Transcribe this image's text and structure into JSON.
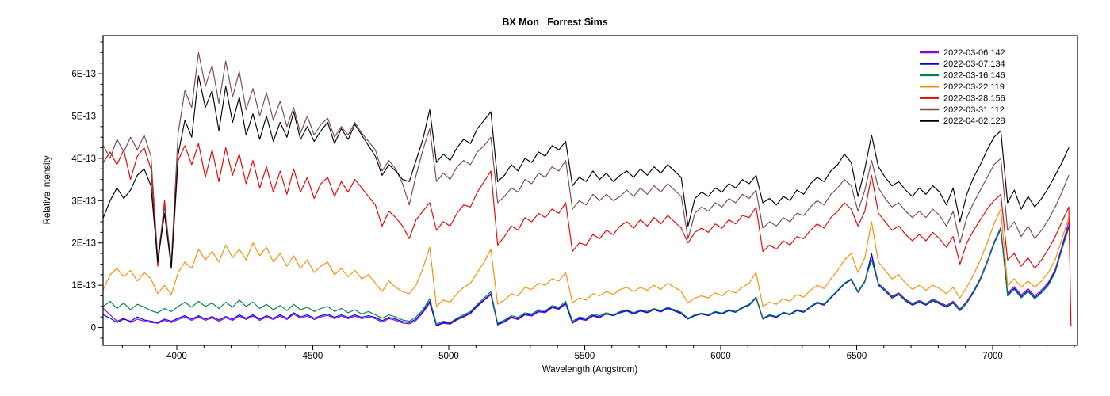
{
  "title": "BX Mon   Forrest Sims",
  "chart_data": {
    "type": "line",
    "title": "BX Mon   Forrest Sims",
    "xlabel": "Wavelength (Angstrom)",
    "ylabel": "Relative intensity",
    "grid": false,
    "legend_position": "top-right",
    "x_range": [
      3729,
      7312
    ],
    "y_range": [
      -4.2e-14,
      6.9e-13
    ],
    "y_unit": "1E-13",
    "x_ticks_major": [
      4000,
      4500,
      5000,
      5500,
      6000,
      6500,
      7000
    ],
    "x_tick_labels": [
      "4000",
      "4500",
      "5000",
      "5500",
      "6000",
      "6500",
      "7000"
    ],
    "x_minor_step": 100,
    "y_ticks_major": [
      0,
      1,
      2,
      3,
      4,
      5,
      6
    ],
    "y_tick_labels": [
      "0",
      "1E-13",
      "2E-13",
      "3E-13",
      "4E-13",
      "5E-13",
      "6E-13"
    ],
    "y_minor_step": 0.25,
    "x_start": 3730,
    "x_step": 25,
    "values_unit_note": "series values are relative intensity in units of 1E-13, sampled every 25 Angstrom from 3730",
    "series": [
      {
        "name": "2022-03-06.142",
        "color": "#8A00E6",
        "values": [
          0.45,
          0.3,
          0.15,
          0.22,
          0.12,
          0.2,
          0.15,
          0.12,
          0.1,
          0.17,
          0.12,
          0.19,
          0.25,
          0.17,
          0.25,
          0.17,
          0.23,
          0.15,
          0.23,
          0.17,
          0.27,
          0.19,
          0.27,
          0.17,
          0.25,
          0.19,
          0.27,
          0.19,
          0.32,
          0.22,
          0.27,
          0.19,
          0.25,
          0.29,
          0.21,
          0.27,
          0.21,
          0.27,
          0.21,
          0.25,
          0.21,
          0.13,
          0.21,
          0.17,
          0.11,
          0.09,
          0.17,
          0.35,
          0.58,
          0.04,
          0.1,
          0.08,
          0.18,
          0.25,
          0.33,
          0.5,
          0.64,
          0.78,
          0.06,
          0.13,
          0.23,
          0.19,
          0.3,
          0.27,
          0.37,
          0.35,
          0.47,
          0.43,
          0.56,
          0.1,
          0.2,
          0.17,
          0.27,
          0.23,
          0.34,
          0.3,
          0.37,
          0.41,
          0.34,
          0.41,
          0.37,
          0.44,
          0.39,
          0.47,
          0.41,
          0.35,
          0.22,
          0.3,
          0.34,
          0.3,
          0.38,
          0.34,
          0.42,
          0.38,
          0.48,
          0.55,
          0.72,
          0.22,
          0.3,
          0.26,
          0.36,
          0.32,
          0.42,
          0.38,
          0.5,
          0.6,
          0.55,
          0.72,
          0.88,
          1.05,
          1.15,
          0.85,
          1.1,
          1.7,
          1.04,
          0.9,
          0.74,
          0.82,
          0.67,
          0.57,
          0.64,
          0.57,
          0.67,
          0.6,
          0.52,
          0.62,
          0.44,
          0.62,
          0.87,
          1.17,
          1.57,
          2.02,
          2.37,
          0.82,
          0.97,
          0.77,
          0.92,
          0.75,
          0.89,
          1.07,
          1.37,
          1.92,
          2.5
        ]
      },
      {
        "name": "2022-03-07.134",
        "color": "#0000EE",
        "values": [
          0.3,
          0.22,
          0.12,
          0.2,
          0.15,
          0.25,
          0.18,
          0.15,
          0.12,
          0.2,
          0.15,
          0.22,
          0.28,
          0.2,
          0.28,
          0.2,
          0.26,
          0.18,
          0.26,
          0.2,
          0.3,
          0.22,
          0.3,
          0.2,
          0.28,
          0.22,
          0.3,
          0.22,
          0.35,
          0.25,
          0.3,
          0.22,
          0.28,
          0.32,
          0.24,
          0.3,
          0.24,
          0.3,
          0.24,
          0.28,
          0.24,
          0.16,
          0.24,
          0.2,
          0.14,
          0.12,
          0.2,
          0.38,
          0.62,
          0.05,
          0.12,
          0.1,
          0.2,
          0.27,
          0.35,
          0.52,
          0.66,
          0.8,
          0.08,
          0.15,
          0.25,
          0.21,
          0.32,
          0.29,
          0.39,
          0.37,
          0.49,
          0.45,
          0.58,
          0.12,
          0.22,
          0.19,
          0.29,
          0.25,
          0.32,
          0.28,
          0.35,
          0.39,
          0.32,
          0.39,
          0.35,
          0.42,
          0.37,
          0.45,
          0.39,
          0.33,
          0.2,
          0.28,
          0.32,
          0.28,
          0.36,
          0.32,
          0.4,
          0.36,
          0.46,
          0.53,
          0.7,
          0.2,
          0.28,
          0.24,
          0.34,
          0.3,
          0.4,
          0.36,
          0.48,
          0.58,
          0.53,
          0.7,
          0.86,
          1.03,
          1.13,
          0.83,
          1.08,
          1.75,
          1.0,
          0.86,
          0.7,
          0.78,
          0.63,
          0.53,
          0.6,
          0.53,
          0.63,
          0.56,
          0.48,
          0.58,
          0.4,
          0.58,
          0.83,
          1.13,
          1.53,
          1.98,
          2.33,
          0.78,
          0.93,
          0.73,
          0.88,
          0.71,
          0.85,
          1.03,
          1.33,
          1.88,
          2.4
        ]
      },
      {
        "name": "2022-03-16.146",
        "color": "#00804C",
        "values": [
          0.5,
          0.62,
          0.45,
          0.58,
          0.42,
          0.55,
          0.48,
          0.4,
          0.35,
          0.45,
          0.38,
          0.5,
          0.6,
          0.48,
          0.62,
          0.5,
          0.58,
          0.45,
          0.6,
          0.48,
          0.65,
          0.5,
          0.6,
          0.45,
          0.55,
          0.42,
          0.52,
          0.4,
          0.55,
          0.42,
          0.48,
          0.38,
          0.45,
          0.5,
          0.38,
          0.45,
          0.35,
          0.42,
          0.32,
          0.38,
          0.3,
          0.22,
          0.3,
          0.25,
          0.18,
          0.15,
          0.25,
          0.42,
          0.68,
          0.08,
          0.15,
          0.12,
          0.22,
          0.3,
          0.38,
          0.55,
          0.7,
          0.85,
          0.1,
          0.18,
          0.28,
          0.24,
          0.35,
          0.32,
          0.42,
          0.4,
          0.52,
          0.48,
          0.62,
          0.15,
          0.25,
          0.22,
          0.32,
          0.28,
          0.35,
          0.3,
          0.38,
          0.42,
          0.35,
          0.42,
          0.38,
          0.45,
          0.4,
          0.48,
          0.42,
          0.36,
          0.22,
          0.3,
          0.34,
          0.3,
          0.38,
          0.34,
          0.42,
          0.38,
          0.48,
          0.55,
          0.72,
          0.22,
          0.3,
          0.26,
          0.36,
          0.32,
          0.42,
          0.38,
          0.5,
          0.6,
          0.55,
          0.72,
          0.88,
          1.05,
          1.15,
          0.85,
          1.1,
          1.6,
          1.02,
          0.88,
          0.72,
          0.8,
          0.65,
          0.55,
          0.62,
          0.55,
          0.65,
          0.58,
          0.5,
          0.6,
          0.42,
          0.6,
          0.85,
          1.15,
          1.55,
          2.0,
          2.35,
          0.75,
          0.9,
          0.7,
          0.85,
          0.68,
          0.82,
          1.0,
          1.3,
          1.85,
          2.35
        ]
      },
      {
        "name": "2022-03-22.119",
        "color": "#FF8C00",
        "values": [
          0.9,
          1.25,
          1.4,
          1.2,
          1.35,
          1.1,
          1.3,
          1.15,
          0.8,
          1.0,
          0.78,
          1.3,
          1.55,
          1.4,
          1.85,
          1.6,
          1.8,
          1.55,
          1.95,
          1.65,
          1.85,
          1.6,
          2.0,
          1.7,
          1.9,
          1.55,
          1.75,
          1.45,
          1.7,
          1.4,
          1.6,
          1.3,
          1.45,
          1.55,
          1.25,
          1.4,
          1.2,
          1.35,
          1.15,
          1.25,
          1.05,
          0.85,
          1.1,
          0.95,
          0.85,
          0.8,
          1.0,
          1.4,
          1.9,
          0.5,
          0.65,
          0.6,
          0.8,
          0.95,
          1.05,
          1.3,
          1.55,
          1.85,
          0.55,
          0.65,
          0.8,
          0.75,
          0.95,
          0.9,
          1.05,
          1.0,
          1.15,
          1.1,
          1.3,
          0.58,
          0.7,
          0.65,
          0.8,
          0.75,
          0.85,
          0.78,
          0.9,
          0.95,
          0.85,
          0.95,
          0.88,
          1.0,
          0.9,
          1.05,
          0.95,
          0.85,
          0.58,
          0.7,
          0.75,
          0.7,
          0.82,
          0.75,
          0.88,
          0.82,
          0.95,
          1.05,
          1.3,
          0.5,
          0.6,
          0.55,
          0.68,
          0.62,
          0.78,
          0.72,
          0.88,
          1.0,
          0.92,
          1.15,
          1.35,
          1.6,
          1.75,
          1.3,
          1.65,
          2.5,
          1.55,
          1.35,
          1.15,
          1.25,
          1.05,
          0.9,
          1.0,
          0.88,
          1.0,
          0.92,
          0.8,
          0.95,
          0.7,
          0.95,
          1.25,
          1.6,
          2.0,
          2.45,
          2.8,
          1.0,
          1.15,
          0.95,
          1.1,
          0.95,
          1.1,
          1.3,
          1.6,
          2.1,
          2.6
        ]
      },
      {
        "name": "2022-03-28.156",
        "color": "#EE0000",
        "extra_point": [
          7288,
          0.03
        ],
        "values": [
          3.9,
          4.15,
          3.85,
          4.2,
          3.5,
          4.05,
          4.25,
          3.75,
          1.45,
          3.0,
          1.4,
          3.95,
          4.3,
          3.85,
          4.35,
          3.55,
          4.2,
          3.45,
          4.25,
          3.6,
          4.1,
          3.4,
          3.95,
          3.3,
          3.8,
          3.2,
          3.7,
          3.15,
          3.75,
          3.2,
          3.55,
          3.05,
          3.4,
          3.55,
          3.1,
          3.45,
          3.2,
          3.5,
          3.3,
          3.1,
          2.9,
          2.4,
          2.75,
          2.6,
          2.4,
          2.1,
          2.55,
          2.75,
          2.95,
          2.3,
          2.5,
          2.4,
          2.7,
          2.9,
          2.85,
          3.2,
          3.45,
          3.7,
          1.95,
          2.15,
          2.4,
          2.3,
          2.6,
          2.5,
          2.7,
          2.6,
          2.8,
          2.7,
          2.95,
          1.8,
          2.0,
          1.95,
          2.2,
          2.1,
          2.3,
          2.2,
          2.4,
          2.5,
          2.35,
          2.55,
          2.4,
          2.6,
          2.45,
          2.65,
          2.5,
          2.35,
          2.0,
          2.25,
          2.35,
          2.25,
          2.45,
          2.35,
          2.55,
          2.45,
          2.65,
          2.6,
          2.85,
          1.8,
          1.95,
          1.85,
          2.05,
          1.95,
          2.15,
          2.1,
          2.3,
          2.45,
          2.35,
          2.6,
          2.75,
          2.95,
          2.8,
          2.4,
          2.75,
          3.6,
          2.7,
          2.5,
          2.3,
          2.4,
          2.2,
          2.05,
          2.2,
          2.05,
          2.25,
          2.1,
          1.9,
          2.15,
          1.5,
          2.0,
          2.3,
          2.55,
          2.8,
          3.0,
          3.15,
          1.6,
          1.75,
          1.45,
          1.65,
          1.4,
          1.6,
          1.85,
          2.15,
          2.5,
          2.85
        ]
      },
      {
        "name": "2022-03-31.112",
        "color": "#7D4A4A",
        "values": [
          4.3,
          4.0,
          4.45,
          4.15,
          4.5,
          4.2,
          4.55,
          4.05,
          1.65,
          2.85,
          1.55,
          4.6,
          5.6,
          5.2,
          6.5,
          5.7,
          6.2,
          5.3,
          6.3,
          5.45,
          6.05,
          5.15,
          5.65,
          5.0,
          5.55,
          4.9,
          5.35,
          4.75,
          5.2,
          4.6,
          5.0,
          4.55,
          4.8,
          4.95,
          4.5,
          4.75,
          4.55,
          4.85,
          4.6,
          4.4,
          4.2,
          3.7,
          3.95,
          3.75,
          3.4,
          2.9,
          3.6,
          4.2,
          4.7,
          3.45,
          3.65,
          3.5,
          3.8,
          3.95,
          3.85,
          4.15,
          4.3,
          4.5,
          2.95,
          3.1,
          3.3,
          3.2,
          3.5,
          3.4,
          3.65,
          3.55,
          3.8,
          3.7,
          3.95,
          2.8,
          3.0,
          2.9,
          3.15,
          3.0,
          3.15,
          3.0,
          3.1,
          3.25,
          3.1,
          3.3,
          3.15,
          3.35,
          3.2,
          3.4,
          3.25,
          3.1,
          2.1,
          2.7,
          2.85,
          2.75,
          2.95,
          2.85,
          3.05,
          2.95,
          3.15,
          3.05,
          3.25,
          2.35,
          2.5,
          2.4,
          2.6,
          2.5,
          2.7,
          2.65,
          2.85,
          3.0,
          2.9,
          3.15,
          3.3,
          3.5,
          3.35,
          2.75,
          3.25,
          3.95,
          3.3,
          3.05,
          2.85,
          2.95,
          2.75,
          2.6,
          2.75,
          2.6,
          2.8,
          2.65,
          2.4,
          2.75,
          2.0,
          2.6,
          2.95,
          3.25,
          3.55,
          3.85,
          4.0,
          2.3,
          2.5,
          2.15,
          2.4,
          2.1,
          2.3,
          2.55,
          2.85,
          3.2,
          3.6
        ]
      },
      {
        "name": "2022-04-02.128",
        "color": "#000000",
        "values": [
          2.6,
          3.0,
          3.3,
          3.05,
          3.25,
          3.6,
          3.75,
          3.35,
          1.55,
          2.7,
          1.4,
          4.1,
          4.9,
          4.5,
          5.95,
          5.2,
          5.6,
          4.65,
          5.7,
          4.85,
          5.45,
          4.55,
          5.05,
          4.45,
          5.0,
          4.4,
          4.85,
          4.5,
          5.1,
          4.45,
          4.75,
          4.4,
          4.65,
          4.85,
          4.35,
          4.7,
          4.45,
          4.8,
          4.55,
          4.3,
          4.05,
          3.6,
          3.85,
          3.7,
          3.5,
          3.45,
          3.95,
          4.45,
          5.15,
          3.9,
          4.1,
          3.95,
          4.25,
          4.45,
          4.35,
          4.7,
          4.9,
          5.1,
          3.45,
          3.6,
          3.85,
          3.7,
          4.0,
          3.9,
          4.15,
          4.05,
          4.3,
          4.2,
          4.4,
          3.35,
          3.55,
          3.45,
          3.7,
          3.5,
          3.65,
          3.45,
          3.6,
          3.7,
          3.55,
          3.75,
          3.6,
          3.8,
          3.65,
          3.85,
          3.7,
          3.55,
          2.4,
          3.05,
          3.2,
          3.1,
          3.3,
          3.2,
          3.4,
          3.3,
          3.5,
          3.4,
          3.6,
          2.95,
          3.05,
          2.9,
          3.1,
          3.0,
          3.25,
          3.15,
          3.4,
          3.55,
          3.45,
          3.7,
          3.85,
          4.1,
          3.9,
          3.1,
          3.75,
          4.55,
          3.8,
          3.55,
          3.35,
          3.45,
          3.25,
          3.1,
          3.3,
          3.15,
          3.35,
          3.2,
          2.9,
          3.3,
          2.5,
          3.15,
          3.55,
          3.85,
          4.2,
          4.5,
          4.65,
          2.95,
          3.25,
          2.8,
          3.1,
          2.85,
          3.05,
          3.3,
          3.6,
          3.9,
          4.25
        ]
      }
    ]
  }
}
